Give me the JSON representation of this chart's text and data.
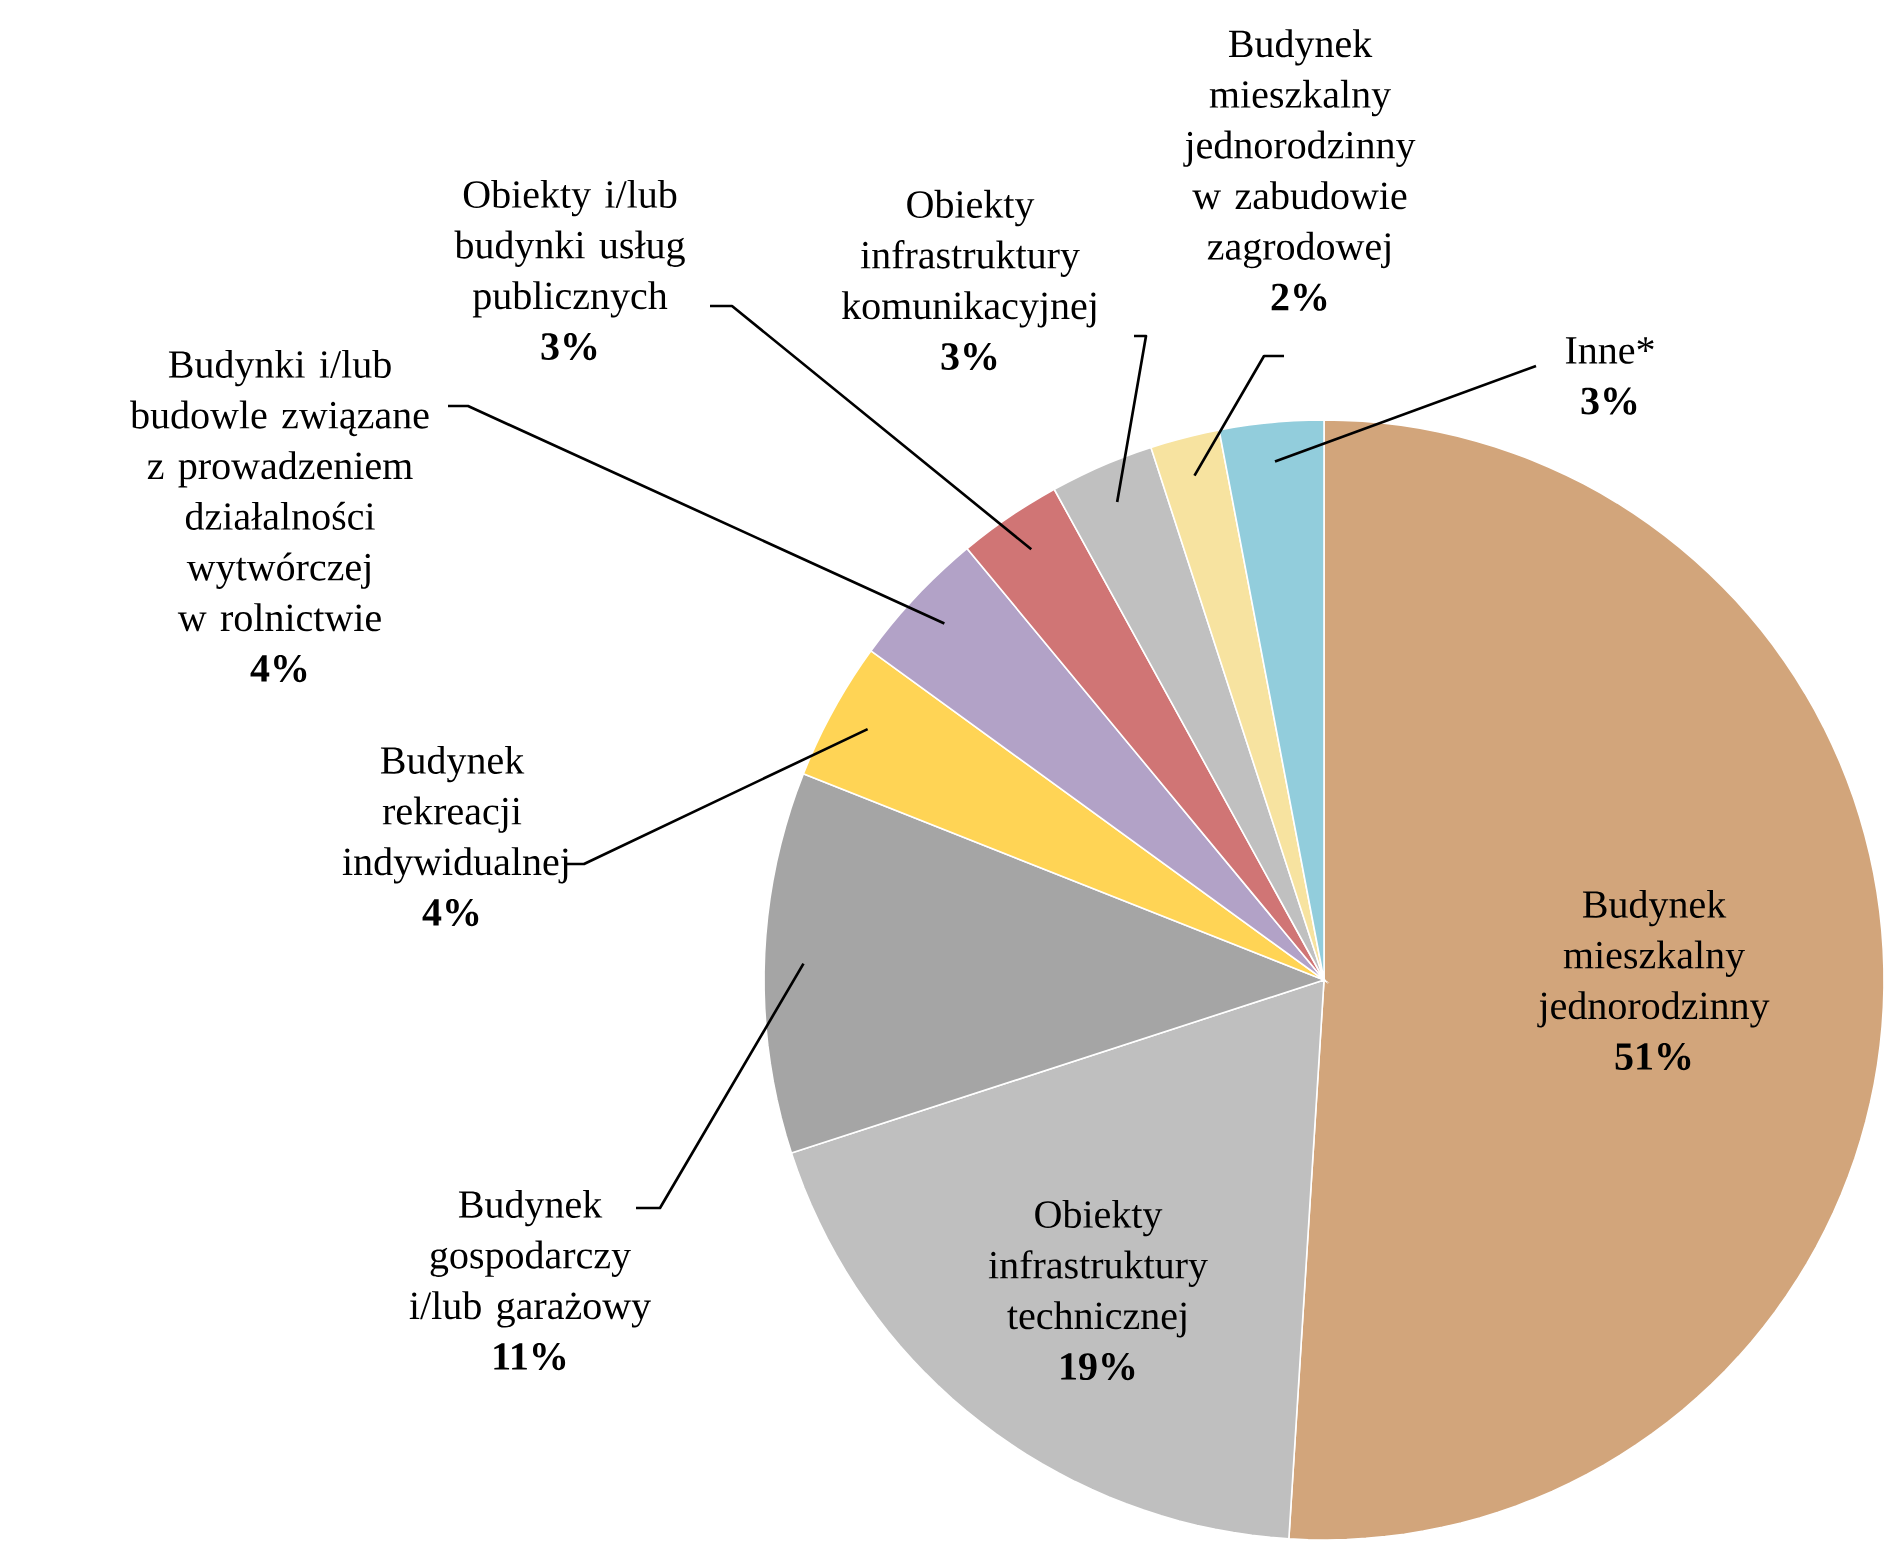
{
  "chart_data": {
    "type": "pie",
    "categories": [
      "Budynek mieszkalny jednorodzinny",
      "Obiekty infrastruktury technicznej",
      "Budynek gospodarczy i/lub garażowy",
      "Budynek rekreacji indywidualnej",
      "Budynki i/lub budowle związane z prowadzeniem działalności wytwórczej w rolnictwie",
      "Obiekty i/lub budynki usług publicznych",
      "Obiekty infrastruktury komunikacyjnej",
      "Budynek mieszkalny jednorodzinny w zabudowie zagrodowej",
      "Inne*"
    ],
    "values": [
      51,
      19,
      11,
      4,
      4,
      3,
      3,
      2,
      3
    ],
    "value_labels": [
      "51%",
      "19%",
      "11%",
      "4%",
      "4%",
      "3%",
      "3%",
      "2%",
      "3%"
    ],
    "colors": [
      "#d2a57b",
      "#bfbfbf",
      "#a5a5a5",
      "#ffd455",
      "#b2a2c7",
      "#d07575",
      "#c0c0c0",
      "#f7e3a0",
      "#92cddc"
    ]
  }
}
